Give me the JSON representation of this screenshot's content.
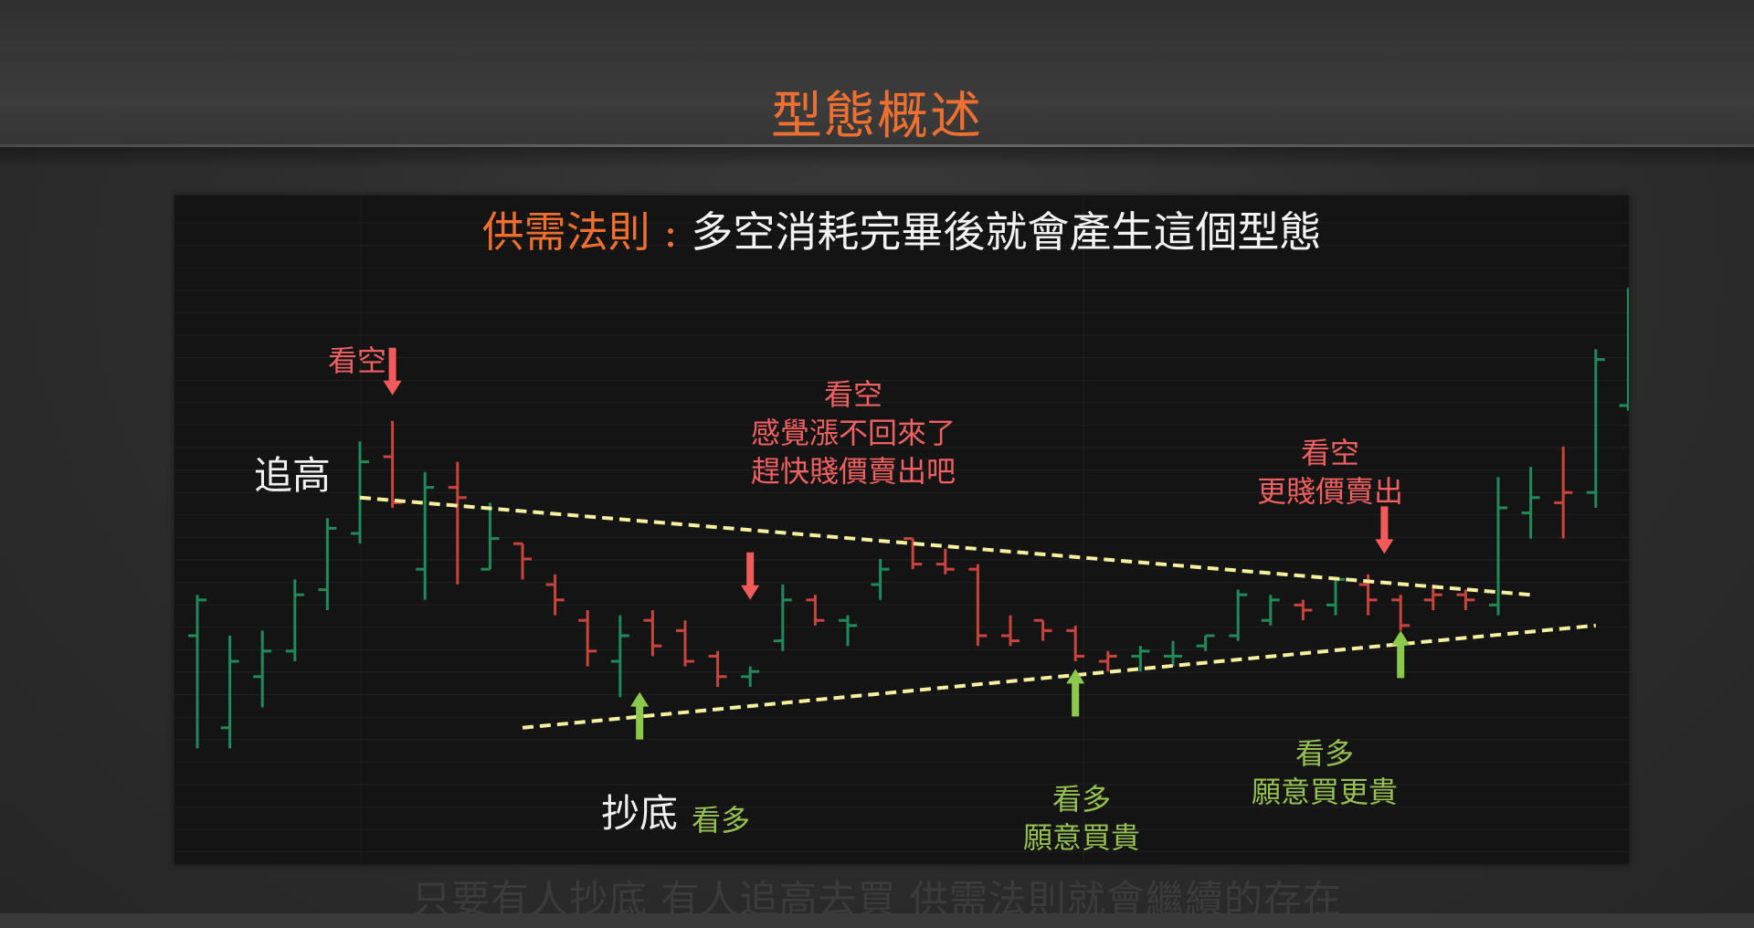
{
  "page_title": "型態概述",
  "footer_caption": "只要有人抄底 有人追高去買 供需法則就會繼續的存在",
  "colors": {
    "title_orange": "#ee6f30",
    "up_bar": "#1f8a5a",
    "down_bar": "#c8443c",
    "trendline": "#f5f0a0",
    "arrow_red": "#f55a5a",
    "arrow_green": "#8cc84b"
  },
  "chart_data": {
    "type": "ohlc",
    "title_prefix": "供需法則 :",
    "title_rest": "多空消耗完畢後就會產生這個型態",
    "axes_visible": false,
    "grid": true,
    "bars": [
      {
        "o": 70,
        "h": 62,
        "l": 92,
        "c": 63,
        "up": true
      },
      {
        "o": 88,
        "h": 70,
        "l": 92,
        "c": 75,
        "up": true
      },
      {
        "o": 78,
        "h": 69,
        "l": 84,
        "c": 73,
        "up": true
      },
      {
        "o": 73,
        "h": 59,
        "l": 75,
        "c": 62,
        "up": true
      },
      {
        "o": 61,
        "h": 47,
        "l": 65,
        "c": 49,
        "up": true
      },
      {
        "o": 50,
        "h": 32,
        "l": 52,
        "c": 36,
        "up": true
      },
      {
        "o": 35,
        "h": 28,
        "l": 45,
        "c": 44,
        "up": false
      },
      {
        "o": 57,
        "h": 38,
        "l": 63,
        "c": 41,
        "up": true
      },
      {
        "o": 41,
        "h": 36,
        "l": 60,
        "c": 43,
        "up": false
      },
      {
        "o": 57,
        "h": 44,
        "l": 57,
        "c": 51,
        "up": true
      },
      {
        "o": 52,
        "h": 52,
        "l": 59,
        "c": 55,
        "up": false
      },
      {
        "o": 60,
        "h": 58,
        "l": 66,
        "c": 63,
        "up": false
      },
      {
        "o": 67,
        "h": 65,
        "l": 76,
        "c": 73,
        "up": false
      },
      {
        "o": 75,
        "h": 66,
        "l": 82,
        "c": 70,
        "up": true
      },
      {
        "o": 67,
        "h": 65,
        "l": 74,
        "c": 72,
        "up": false
      },
      {
        "o": 69,
        "h": 67,
        "l": 76,
        "c": 75,
        "up": false
      },
      {
        "o": 74,
        "h": 73,
        "l": 80,
        "c": 78,
        "up": false
      },
      {
        "o": 78,
        "h": 76,
        "l": 80,
        "c": 77,
        "up": true
      },
      {
        "o": 71,
        "h": 60,
        "l": 73,
        "c": 63,
        "up": true
      },
      {
        "o": 63,
        "h": 62,
        "l": 68,
        "c": 67,
        "up": false
      },
      {
        "o": 67,
        "h": 66,
        "l": 72,
        "c": 68,
        "up": true
      },
      {
        "o": 60,
        "h": 55,
        "l": 63,
        "c": 57,
        "up": true
      },
      {
        "o": 51,
        "h": 51,
        "l": 57,
        "c": 56,
        "up": false
      },
      {
        "o": 56,
        "h": 53,
        "l": 58,
        "c": 57,
        "up": false
      },
      {
        "o": 57,
        "h": 56,
        "l": 72,
        "c": 70,
        "up": false
      },
      {
        "o": 70,
        "h": 66,
        "l": 72,
        "c": 71,
        "up": false
      },
      {
        "o": 67,
        "h": 67,
        "l": 71,
        "c": 69,
        "up": false
      },
      {
        "o": 69,
        "h": 68,
        "l": 75,
        "c": 74,
        "up": false
      },
      {
        "o": 75,
        "h": 73,
        "l": 77,
        "c": 74,
        "up": false
      },
      {
        "o": 74,
        "h": 72,
        "l": 77,
        "c": 73,
        "up": true
      },
      {
        "o": 74,
        "h": 71,
        "l": 76,
        "c": 74,
        "up": true
      },
      {
        "o": 72,
        "h": 70,
        "l": 73,
        "c": 70,
        "up": true
      },
      {
        "o": 70,
        "h": 61,
        "l": 71,
        "c": 62,
        "up": true
      },
      {
        "o": 67,
        "h": 62,
        "l": 68,
        "c": 63,
        "up": true
      },
      {
        "o": 64,
        "h": 63,
        "l": 67,
        "c": 65,
        "up": false
      },
      {
        "o": 64,
        "h": 59,
        "l": 66,
        "c": 59,
        "up": true
      },
      {
        "o": 60,
        "h": 58,
        "l": 66,
        "c": 63,
        "up": false
      },
      {
        "o": 63,
        "h": 62,
        "l": 69,
        "c": 68,
        "up": false
      },
      {
        "o": 63,
        "h": 60,
        "l": 65,
        "c": 62,
        "up": false
      },
      {
        "o": 62,
        "h": 61,
        "l": 65,
        "c": 63,
        "up": false
      },
      {
        "o": 64,
        "h": 39,
        "l": 66,
        "c": 45,
        "up": true
      },
      {
        "o": 46,
        "h": 37,
        "l": 51,
        "c": 43,
        "up": true
      },
      {
        "o": 44,
        "h": 33,
        "l": 51,
        "c": 42,
        "up": false
      },
      {
        "o": 42,
        "h": 14,
        "l": 45,
        "c": 16,
        "up": true
      },
      {
        "o": 25,
        "h": 2,
        "l": 26,
        "c": 9,
        "up": true
      }
    ],
    "trendlines": [
      {
        "name": "resistance",
        "from": [
          5,
          43
        ],
        "to": [
          41,
          62
        ]
      },
      {
        "name": "support",
        "from": [
          10,
          88
        ],
        "to": [
          43,
          68
        ]
      }
    ],
    "annotations": {
      "chase_high": "追高",
      "bottom_fish": "抄底",
      "bear1": [
        "看空"
      ],
      "bear2": [
        "看空",
        "感覺漲不回來了",
        "趕快賤價賣出吧"
      ],
      "bear3": [
        "看空",
        "更賤價賣出"
      ],
      "bull1": [
        "看多"
      ],
      "bull2": [
        "看多",
        "願意買貴"
      ],
      "bull3": [
        "看多",
        "願意買更貴"
      ]
    }
  }
}
